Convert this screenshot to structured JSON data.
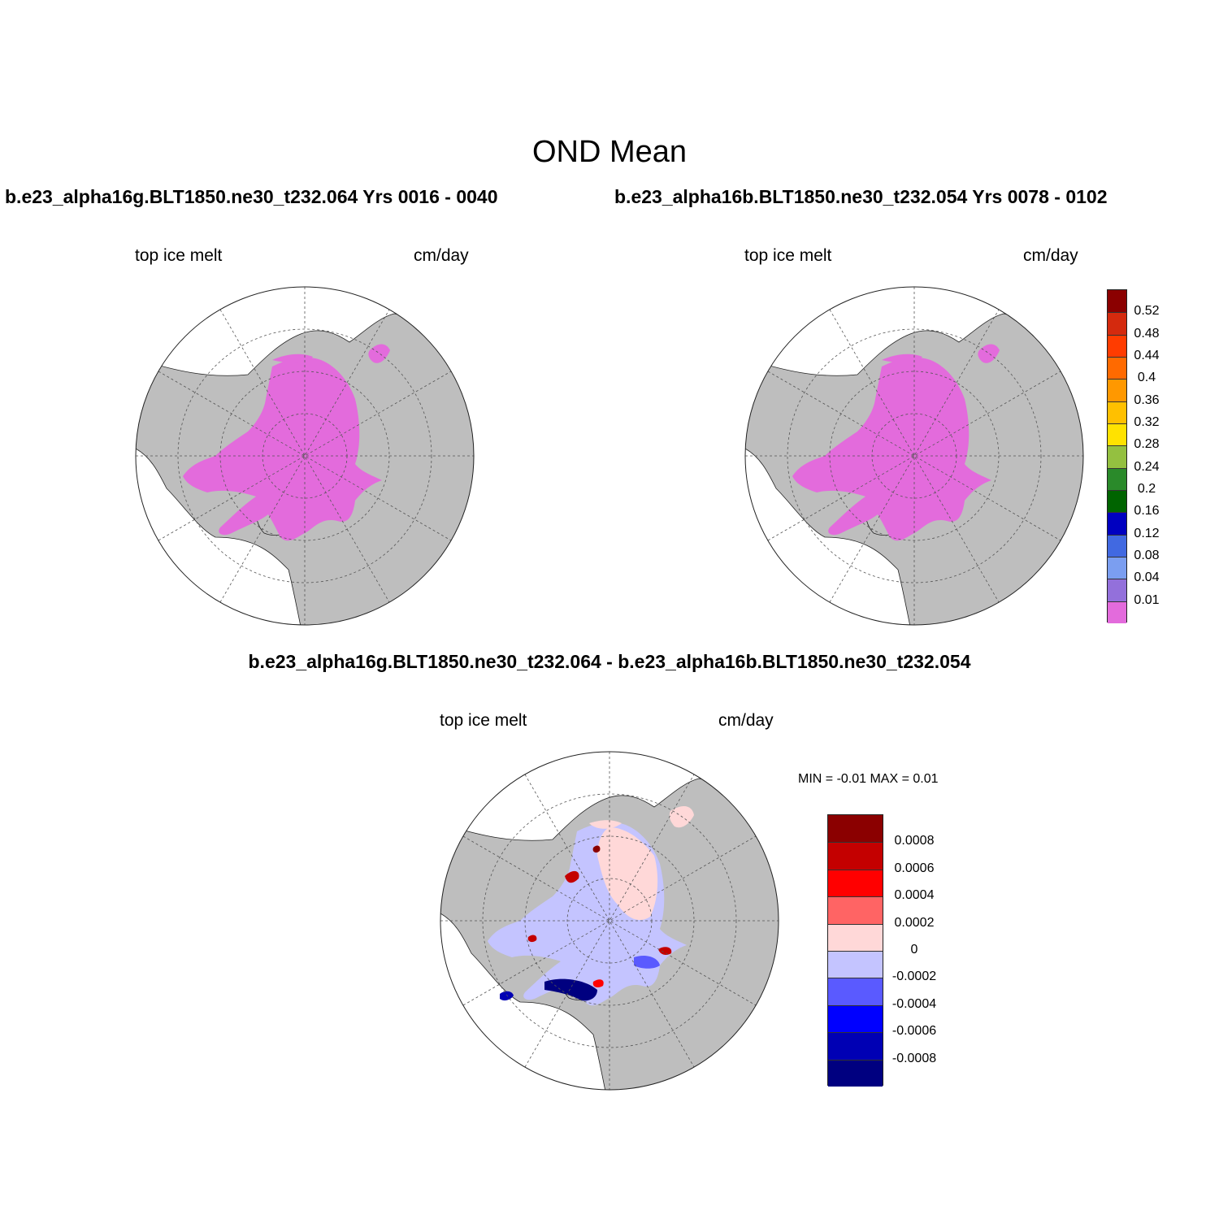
{
  "main_title": "OND Mean",
  "panels": [
    {
      "title": "b.e23_alpha16g.BLT1850.ne30_t232.064  Yrs 0016 - 0040",
      "variable": "top ice melt",
      "units": "cm/day"
    },
    {
      "title": "b.e23_alpha16b.BLT1850.ne30_t232.054  Yrs 0078 - 0102",
      "variable": "top ice melt",
      "units": "cm/day"
    },
    {
      "title": "b.e23_alpha16g.BLT1850.ne30_t232.064 - b.e23_alpha16b.BLT1850.ne30_t232.054",
      "variable": "top ice melt",
      "units": "cm/day",
      "minmax": "MIN =  -0.01 MAX =   0.01"
    }
  ],
  "colorbar_top": {
    "labels": [
      "0.52",
      "0.48",
      "0.44",
      "0.4",
      "0.36",
      "0.32",
      "0.28",
      "0.24",
      "0.2",
      "0.16",
      "0.12",
      "0.08",
      "0.04",
      "0.01"
    ],
    "colors": [
      "#8b0000",
      "#d42a0e",
      "#ff3c00",
      "#ff6a00",
      "#ff9800",
      "#ffc000",
      "#ffe200",
      "#94c040",
      "#2a8a2a",
      "#006400",
      "#0000c0",
      "#4169e1",
      "#7b9ef0",
      "#9370db",
      "#e36bdc"
    ]
  },
  "colorbar_diff": {
    "labels": [
      "0.0008",
      "0.0006",
      "0.0004",
      "0.0002",
      "0",
      "-0.0002",
      "-0.0004",
      "-0.0006",
      "-0.0008"
    ],
    "colors": [
      "#8b0000",
      "#c40000",
      "#ff0000",
      "#ff6464",
      "#ffd8d8",
      "#c4c4ff",
      "#5a5aff",
      "#0000ff",
      "#0000b4",
      "#000080"
    ]
  },
  "map_colors": {
    "ocean": "#ffffff",
    "land": "#bebebe",
    "ice_melt": "#e36bdc"
  }
}
